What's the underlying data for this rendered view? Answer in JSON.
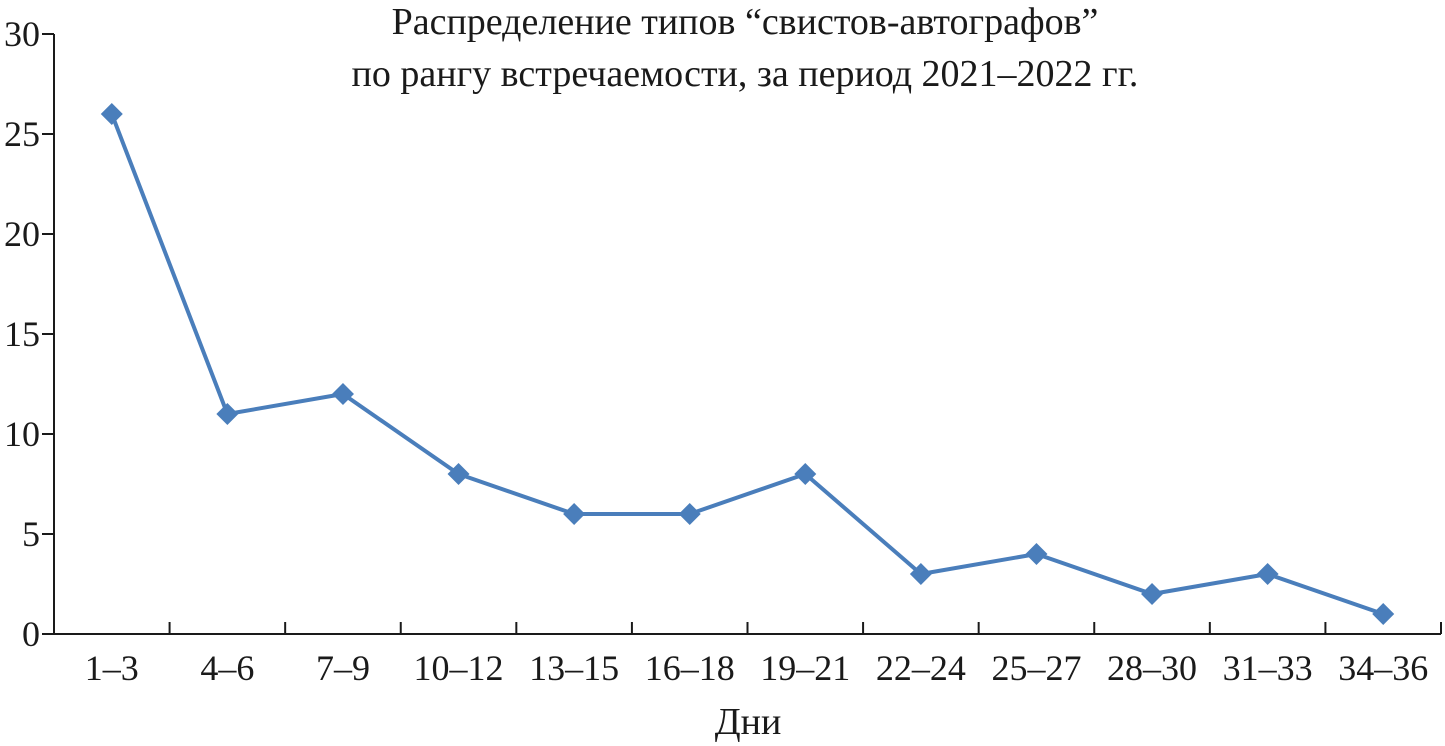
{
  "chart_data": {
    "type": "line",
    "title_lines": [
      "Распределение типов “свистов-автографов”",
      "по рангу встречаемости, за период 2021–2022 гг."
    ],
    "xlabel": "Дни",
    "ylabel": "",
    "categories": [
      "1–3",
      "4–6",
      "7–9",
      "10–12",
      "13–15",
      "16–18",
      "19–21",
      "22–24",
      "25–27",
      "28–30",
      "31–33",
      "34–36"
    ],
    "series": [
      {
        "values": [
          26,
          11,
          12,
          8,
          6,
          6,
          8,
          3,
          4,
          2,
          3,
          1
        ]
      }
    ],
    "ylim": [
      0,
      30
    ],
    "yticks": [
      0,
      5,
      10,
      15,
      20,
      25,
      30
    ],
    "grid": false,
    "legend": "none",
    "colors": {
      "line": "#4a7ebb",
      "marker": "#4a7ebb"
    },
    "marker": "diamond"
  }
}
